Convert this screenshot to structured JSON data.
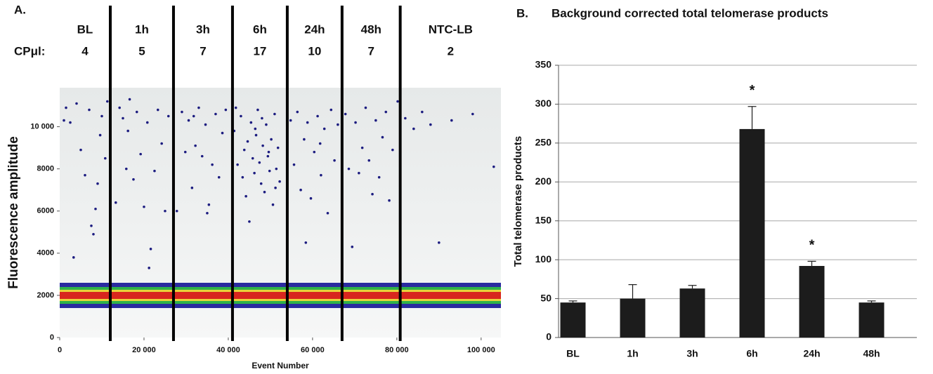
{
  "chart_data": [
    {
      "type": "scatter",
      "label": "A.",
      "row_label": "CPμl:",
      "segments": [
        "BL",
        "1h",
        "3h",
        "6h",
        "24h",
        "48h",
        "NTC-LB"
      ],
      "cp_per_ul": [
        4,
        5,
        7,
        17,
        10,
        7,
        2
      ],
      "dividers": [
        12000,
        27000,
        41000,
        54000,
        67000,
        80800
      ],
      "x_label": "Event Number",
      "y_label": "Fluorescence  amplitude",
      "xlim": [
        0,
        104700
      ],
      "ylim": [
        0,
        11850
      ],
      "xticks": [
        0,
        {
          "value": 20000,
          "label": "20 000"
        },
        {
          "value": 40000,
          "label": "40 000"
        },
        {
          "value": 60000,
          "label": "60 000"
        },
        {
          "value": 80000,
          "label": "80 000"
        },
        {
          "value": 100000,
          "label": "100 000"
        }
      ],
      "yticks": [
        0,
        2000,
        4000,
        6000,
        8000,
        {
          "value": 10000,
          "label": "10 000"
        }
      ],
      "series": [
        {
          "color": "#1c1c80",
          "x": [
            1500,
            2500,
            4000,
            5000,
            6000,
            7000,
            7500,
            8500,
            9000,
            10000,
            10800,
            11300,
            3300,
            8000,
            1000,
            9600,
            13300,
            14200,
            15000,
            15800,
            16600,
            17500,
            18300,
            19200,
            20000,
            20800,
            21600,
            22500,
            23300,
            24200,
            25000,
            25800,
            16200,
            21200,
            27800,
            29000,
            29800,
            30600,
            31400,
            32200,
            33000,
            33800,
            34600,
            35400,
            36200,
            37000,
            37800,
            38600,
            39400,
            31800,
            35000,
            41400,
            42200,
            43000,
            43400,
            43800,
            44600,
            45000,
            45400,
            45800,
            46200,
            46600,
            47000,
            47400,
            47800,
            48200,
            48600,
            49000,
            49400,
            49800,
            50200,
            50600,
            51000,
            51400,
            51800,
            52200,
            41800,
            44200,
            46400,
            48000,
            49600,
            51200,
            54800,
            55600,
            56400,
            57200,
            58000,
            58800,
            59600,
            60400,
            61200,
            62000,
            62800,
            63600,
            64400,
            65200,
            66000,
            58400,
            61800,
            67800,
            68600,
            69400,
            70200,
            71000,
            71800,
            72600,
            73400,
            74200,
            75000,
            75800,
            76600,
            77400,
            78200,
            79000,
            80200,
            82000,
            84000,
            86000,
            88000,
            90000,
            93000,
            103000,
            98000
          ],
          "values": [
            10900,
            10200,
            11100,
            8900,
            7700,
            10800,
            5300,
            6100,
            7300,
            10500,
            8500,
            11200,
            3800,
            4900,
            10300,
            9600,
            6400,
            10900,
            10400,
            8000,
            11300,
            7500,
            10700,
            8700,
            6200,
            10200,
            4200,
            7900,
            10800,
            9200,
            6000,
            10500,
            9800,
            3300,
            6000,
            10700,
            8800,
            10300,
            7100,
            9100,
            10900,
            8600,
            10100,
            6300,
            8200,
            10600,
            7600,
            9700,
            10800,
            10500,
            5900,
            9800,
            8200,
            10500,
            7600,
            8900,
            9300,
            5500,
            10200,
            8500,
            7800,
            9600,
            10800,
            8300,
            7300,
            9100,
            6900,
            10100,
            8600,
            7900,
            9400,
            6300,
            10600,
            8000,
            9000,
            7400,
            10900,
            6700,
            9900,
            10400,
            8800,
            7100,
            10300,
            8200,
            10700,
            7000,
            9400,
            10200,
            6600,
            8800,
            10500,
            7700,
            9900,
            5900,
            10800,
            8400,
            10100,
            4500,
            9200,
            10600,
            8000,
            4300,
            10200,
            7800,
            9000,
            10900,
            8400,
            6800,
            10300,
            7600,
            9500,
            10700,
            6500,
            8900,
            11200,
            10400,
            9900,
            10700,
            10100,
            4500,
            10300,
            8100,
            10600
          ]
        }
      ]
    },
    {
      "type": "bar",
      "label": "B.",
      "title": "Background corrected total telomerase products",
      "y_label": "Total telomerase products",
      "categories": [
        "BL",
        "1h",
        "3h",
        "6h",
        "24h",
        "48h"
      ],
      "values": [
        45,
        50,
        63,
        268,
        92,
        45
      ],
      "errors": [
        2,
        18,
        4,
        29,
        6,
        2
      ],
      "color": "#1c1c1c",
      "ylim": [
        0,
        350
      ],
      "yticks": [
        0,
        50,
        100,
        150,
        200,
        250,
        300,
        350
      ],
      "grid": true,
      "annotations": [
        {
          "text": "*",
          "category": "6h"
        },
        {
          "text": "*",
          "category": "24h"
        }
      ]
    }
  ]
}
